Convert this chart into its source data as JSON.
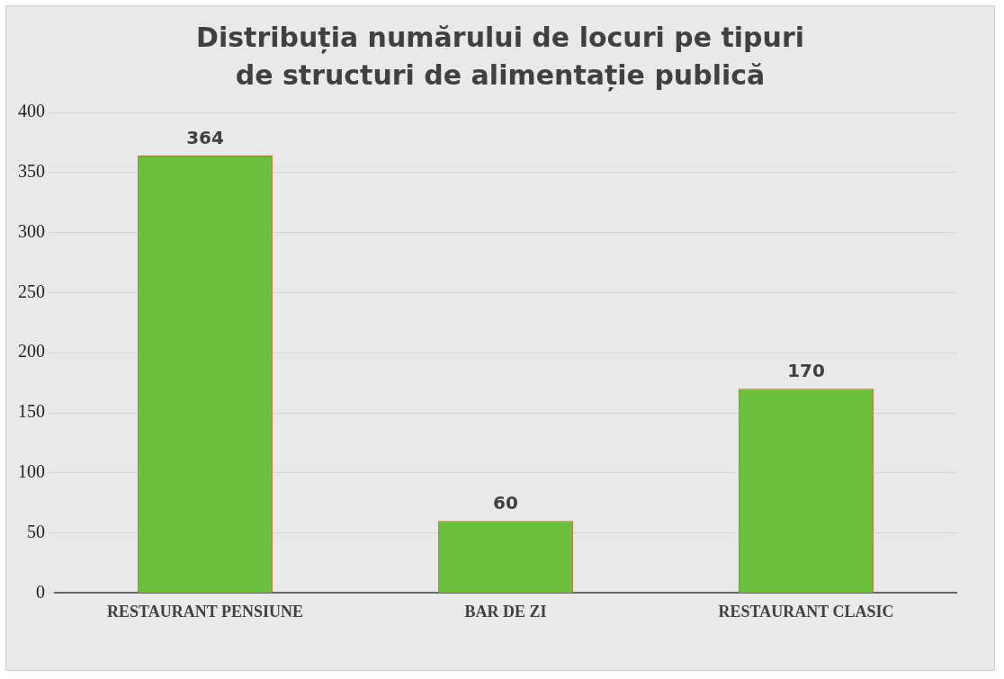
{
  "chart_data": {
    "type": "bar",
    "title": "Distribuția numărului de locuri pe tipuri de structuri de alimentație publică",
    "categories": [
      "RESTAURANT PENSIUNE",
      "BAR DE ZI",
      "RESTAURANT CLASIC"
    ],
    "values": [
      364,
      60,
      170
    ],
    "color": "#6cbf3c",
    "ylim": [
      0,
      400
    ],
    "yticks": [
      0,
      50,
      100,
      150,
      200,
      250,
      300,
      350,
      400
    ],
    "grid": "y",
    "data_labels": true
  }
}
